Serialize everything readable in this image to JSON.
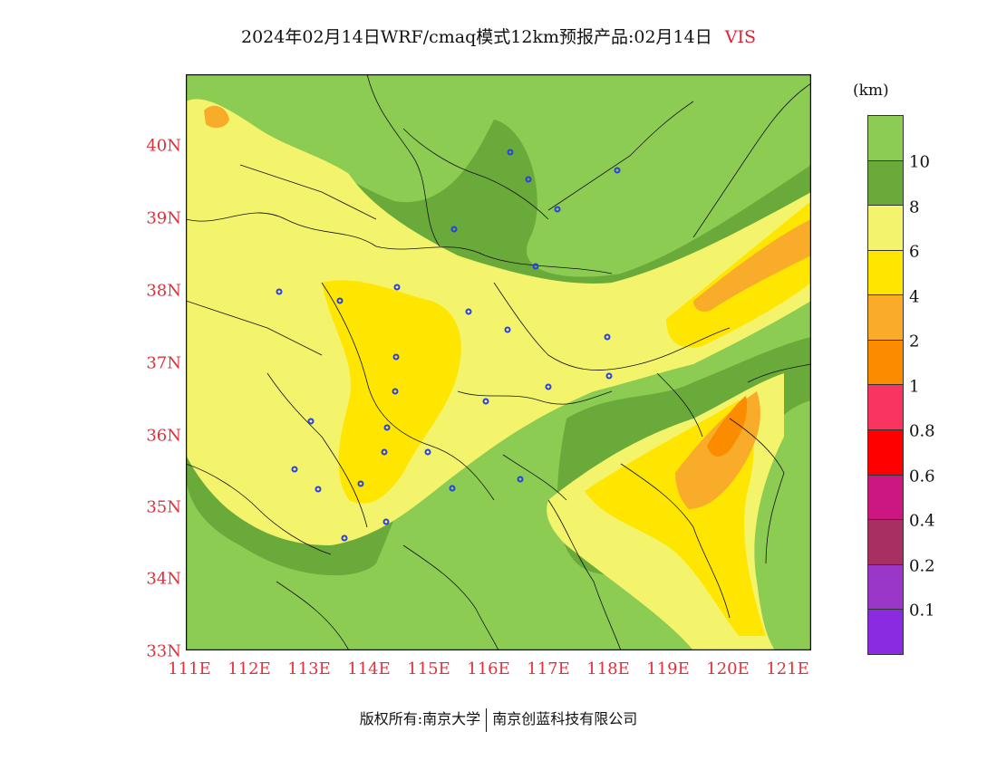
{
  "title": {
    "main": "2024年02月14日WRF/cmaq模式12km预报产品:02月14日",
    "variable": "VIS"
  },
  "axes": {
    "lat_labels": [
      "40N",
      "39N",
      "38N",
      "37N",
      "36N",
      "35N",
      "34N",
      "33N"
    ],
    "lon_labels": [
      "111E",
      "112E",
      "113E",
      "114E",
      "115E",
      "116E",
      "117E",
      "118E",
      "119E",
      "120E",
      "121E"
    ]
  },
  "legend": {
    "unit": "(km)",
    "labels": [
      "10",
      "8",
      "6",
      "4",
      "2",
      "1",
      "0.8",
      "0.6",
      "0.4",
      "0.2",
      "0.1"
    ],
    "colors": [
      "#8ccc53",
      "#6aaa3a",
      "#f4f46c",
      "#ffe600",
      "#f9ab2a",
      "#fb8c00",
      "#fa3460",
      "#ff0000",
      "#cc1680",
      "#a83060",
      "#9a37c8",
      "#8a2be2"
    ]
  },
  "footer": {
    "left": "版权所有:南京大学",
    "right": "南京创蓝科技有限公司"
  },
  "colors": {
    "vis_gt10": "#8ccc53",
    "vis_8_10": "#6aaa3a",
    "vis_6_8": "#f4f46c",
    "vis_4_6": "#ffe600",
    "vis_2_4": "#f9ab2a",
    "vis_1_2": "#fb8c00",
    "station_marker": "#2a40e0",
    "axis_label": "#e0303a"
  }
}
